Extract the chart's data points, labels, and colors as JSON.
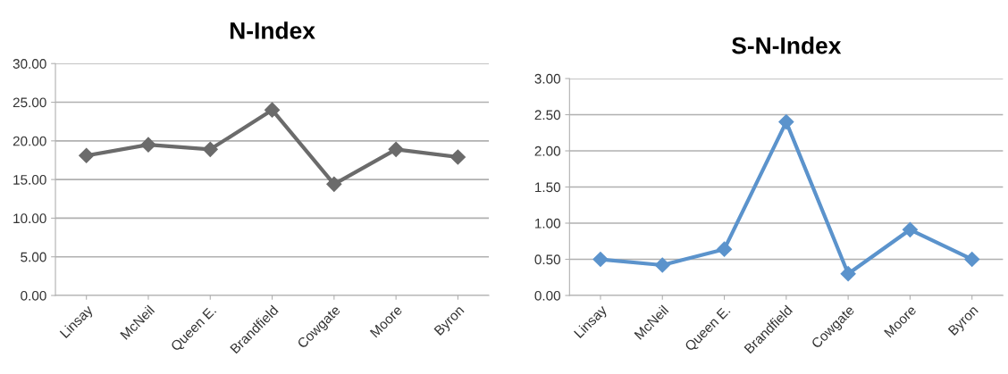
{
  "chart_data": [
    {
      "type": "line",
      "title": "N-Index",
      "categories": [
        "Linsay",
        "McNeil",
        "Queen E.",
        "Brandfield",
        "Cowgate",
        "Moore",
        "Byron"
      ],
      "series": [
        {
          "color": "#6b6b6b",
          "values": [
            18.1,
            19.5,
            18.9,
            24.0,
            14.4,
            18.9,
            17.9
          ]
        }
      ],
      "ylim": [
        0,
        30
      ],
      "yticks": [
        {
          "value": 0,
          "label": "0.00"
        },
        {
          "value": 5,
          "label": "5.00"
        },
        {
          "value": 10,
          "label": "10.00"
        },
        {
          "value": 15,
          "label": "15.00"
        },
        {
          "value": 20,
          "label": "20.00"
        },
        {
          "value": 25,
          "label": "25.00"
        },
        {
          "value": 30,
          "label": "30.00"
        }
      ],
      "grid": "y",
      "marker": "diamond",
      "line_style": "solid"
    },
    {
      "type": "line",
      "title": "S-N-Index",
      "categories": [
        "Linsay",
        "McNeil",
        "Queen E.",
        "Brandfield",
        "Cowgate",
        "Moore",
        "Byron"
      ],
      "series": [
        {
          "color": "#5b93cc",
          "values": [
            0.5,
            0.42,
            0.64,
            2.4,
            0.3,
            0.91,
            0.5
          ]
        }
      ],
      "ylim": [
        0,
        3
      ],
      "yticks": [
        {
          "value": 0,
          "label": "0.00"
        },
        {
          "value": 0.5,
          "label": "0.50"
        },
        {
          "value": 1,
          "label": "1.00"
        },
        {
          "value": 1.5,
          "label": "1.50"
        },
        {
          "value": 2,
          "label": "2.00"
        },
        {
          "value": 2.5,
          "label": "2.50"
        },
        {
          "value": 3,
          "label": "3.00"
        }
      ],
      "grid": "y",
      "marker": "diamond",
      "line_style": "solid"
    }
  ]
}
